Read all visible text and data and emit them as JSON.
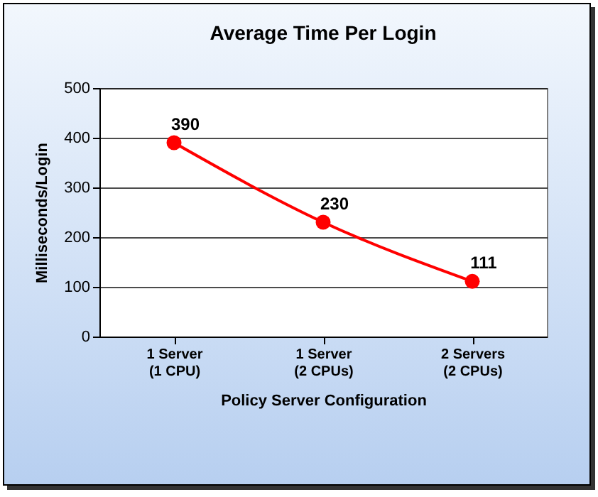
{
  "chart_data": {
    "type": "line",
    "title": "Average Time Per Login",
    "xlabel": "Policy Server Configuration",
    "ylabel": "Milliseconds/Login",
    "categories": [
      "1 Server (1 CPU)",
      "1 Server (2 CPUs)",
      "2 Servers (2 CPUs)"
    ],
    "series": [
      {
        "color": "#ff0000",
        "values": [
          390,
          230,
          111
        ]
      }
    ],
    "ylim": [
      0,
      500
    ],
    "yticks": [
      0,
      100,
      200,
      300,
      400,
      500
    ],
    "grid": "y",
    "marker": "circle",
    "line_style": "solid",
    "data_labels": true,
    "legend": false
  }
}
